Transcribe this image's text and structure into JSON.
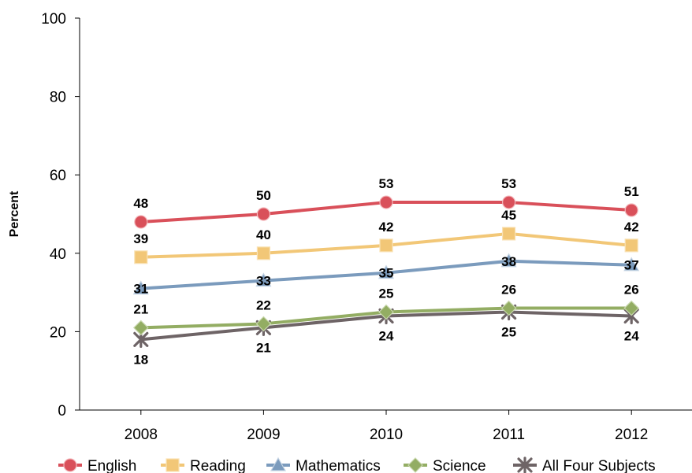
{
  "chart_data": {
    "type": "line",
    "title": "",
    "xlabel": "",
    "ylabel": "Percent",
    "ylim": [
      0,
      100
    ],
    "yticks": [
      0,
      20,
      40,
      60,
      80,
      100
    ],
    "categories": [
      "2008",
      "2009",
      "2010",
      "2011",
      "2012"
    ],
    "grid": false,
    "legend_position": "bottom",
    "series": [
      {
        "name": "English",
        "values": [
          48,
          50,
          53,
          53,
          51
        ],
        "color": "#d9505a",
        "marker": "circle",
        "label_pos": "above"
      },
      {
        "name": "Reading",
        "values": [
          39,
          40,
          42,
          45,
          42
        ],
        "color": "#f2c777",
        "marker": "square",
        "label_pos": "above"
      },
      {
        "name": "Mathematics",
        "values": [
          31,
          33,
          35,
          38,
          37
        ],
        "color": "#7b9bbd",
        "marker": "triangle",
        "label_pos": "center"
      },
      {
        "name": "Science",
        "values": [
          21,
          22,
          25,
          26,
          26
        ],
        "color": "#93ad63",
        "marker": "diamond",
        "label_pos": "above"
      },
      {
        "name": "All Four Subjects",
        "values": [
          18,
          21,
          24,
          25,
          24
        ],
        "color": "#6e6466",
        "marker": "asterisk",
        "label_pos": "below"
      }
    ]
  }
}
